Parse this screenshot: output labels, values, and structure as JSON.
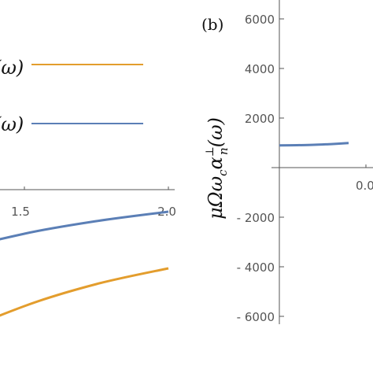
{
  "colors": {
    "orange": "#e39d2d",
    "blue": "#5b7fb6",
    "axis": "#555555"
  },
  "chart_data": [
    {
      "type": "line",
      "panel": "a",
      "x": [
        1.0,
        1.25,
        1.5,
        1.75,
        2.0
      ],
      "xticks": [
        "1.5",
        "2.0"
      ],
      "xlim": [
        1.0,
        2.0
      ],
      "legend": {
        "position": "top-right",
        "entries": [
          "(ω)",
          "(ω)"
        ]
      },
      "series": [
        {
          "color": "#e39d2d",
          "values": [
            -0.62,
            -0.47,
            -0.37,
            -0.3,
            -0.25
          ]
        },
        {
          "color": "#5b7fb6",
          "values": [
            -0.3,
            -0.2,
            -0.14,
            -0.1,
            -0.07
          ]
        }
      ],
      "ylim": [
        -1.0,
        0.0
      ]
    },
    {
      "type": "line",
      "panel": "b",
      "panel_label": "(b)",
      "ylabel": "μΩω",
      "ylabel_sub": "c",
      "ylabel_alpha": "α",
      "ylabel_alpha_sup": "⊥",
      "ylabel_alpha_sub": "n",
      "ylabel_arg": "(ω)",
      "yticks": [
        "6000",
        "4000",
        "2000",
        "- 2000",
        "- 4000",
        "- 6000"
      ],
      "ylim": [
        -6500,
        7000
      ],
      "xticks": [
        "0.0"
      ],
      "xlim": [
        0.0,
        0.12
      ],
      "series": [
        {
          "color": "#5b7fb6",
          "x": [
            0.0,
            0.02,
            0.04,
            0.06,
            0.08
          ],
          "values": [
            900,
            905,
            920,
            950,
            990
          ]
        }
      ]
    }
  ]
}
